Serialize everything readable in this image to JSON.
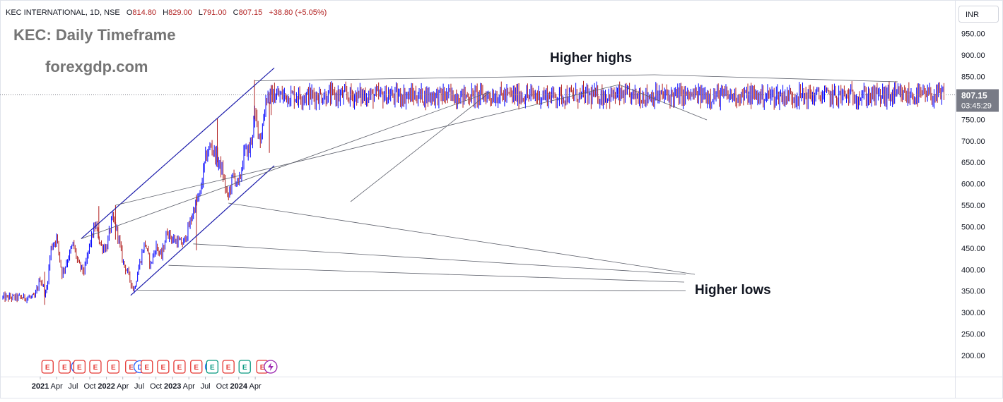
{
  "header": {
    "symbol_info": "KEC INTERNATIONAL, 1D, NSE",
    "open_label": "O",
    "open_value": "814.80",
    "high_label": "H",
    "high_value": "829.00",
    "low_label": "L",
    "low_value": "791.00",
    "close_label": "C",
    "close_value": "807.15",
    "change_value": "+38.80 (+5.05%)"
  },
  "overlay": {
    "title": "KEC: Daily Timeframe",
    "watermark": "forexgdp.com",
    "higher_highs": "Higher highs",
    "higher_lows": "Higher lows"
  },
  "price_scale": {
    "currency": "INR",
    "last_price": "807.15",
    "countdown": "03:45:29"
  },
  "colors": {
    "up": "#0000ff",
    "down": "#b22222",
    "channel": "#1a1aaa",
    "earnings": "#e53935",
    "dividend": "#2962ff",
    "split": "#089981",
    "price_badge": "#787b86"
  },
  "chart_data": {
    "type": "candlestick",
    "y_axis": {
      "ticks": [
        200,
        250,
        300,
        350,
        400,
        450,
        500,
        550,
        600,
        650,
        700,
        750,
        800,
        850,
        900,
        950
      ],
      "tick_labels": [
        "200.00",
        "250.00",
        "300.00",
        "350.00",
        "400.00",
        "450.00",
        "500.00",
        "550.00",
        "600.00",
        "650.00",
        "700.00",
        "750.00",
        "800.00",
        "850.00",
        "900.00",
        "950.00"
      ]
    },
    "x_axis": {
      "labels": [
        {
          "text": "2021",
          "date": "2021-01",
          "bold": true
        },
        {
          "text": "Apr",
          "date": "2021-04"
        },
        {
          "text": "Jul",
          "date": "2021-07"
        },
        {
          "text": "Oct",
          "date": "2021-10"
        },
        {
          "text": "2022",
          "date": "2022-01",
          "bold": true
        },
        {
          "text": "Apr",
          "date": "2022-04"
        },
        {
          "text": "Jul",
          "date": "2022-07"
        },
        {
          "text": "Oct",
          "date": "2022-10"
        },
        {
          "text": "2023",
          "date": "2023-01",
          "bold": true
        },
        {
          "text": "Apr",
          "date": "2023-04"
        },
        {
          "text": "Jul",
          "date": "2023-07"
        },
        {
          "text": "Oct",
          "date": "2023-10"
        },
        {
          "text": "2024",
          "date": "2024-01",
          "bold": true
        },
        {
          "text": "Apr",
          "date": "2024-04"
        }
      ]
    },
    "price_path": [
      [
        "2020-12",
        335
      ],
      [
        "2021-01",
        380
      ],
      [
        "2021-02",
        340
      ],
      [
        "2021-03",
        450
      ],
      [
        "2021-04",
        475
      ],
      [
        "2021-05",
        390
      ],
      [
        "2021-06",
        425
      ],
      [
        "2021-07",
        460
      ],
      [
        "2021-08",
        410
      ],
      [
        "2021-09",
        395
      ],
      [
        "2021-10",
        460
      ],
      [
        "2021-11",
        505
      ],
      [
        "2021-12",
        455
      ],
      [
        "2022-01",
        450
      ],
      [
        "2022-02",
        520
      ],
      [
        "2022-03",
        490
      ],
      [
        "2022-04",
        420
      ],
      [
        "2022-05",
        390
      ],
      [
        "2022-06",
        350
      ],
      [
        "2022-07",
        410
      ],
      [
        "2022-08",
        465
      ],
      [
        "2022-09",
        410
      ],
      [
        "2022-10",
        455
      ],
      [
        "2022-11",
        430
      ],
      [
        "2022-12",
        490
      ],
      [
        "2023-01",
        470
      ],
      [
        "2023-02",
        465
      ],
      [
        "2023-03",
        460
      ],
      [
        "2023-04",
        500
      ],
      [
        "2023-05",
        545
      ],
      [
        "2023-06",
        575
      ],
      [
        "2023-07",
        660
      ],
      [
        "2023-08",
        690
      ],
      [
        "2023-09",
        660
      ],
      [
        "2023-10",
        630
      ],
      [
        "2023-11",
        565
      ],
      [
        "2023-12",
        620
      ],
      [
        "2024-01",
        595
      ],
      [
        "2024-02",
        675
      ],
      [
        "2024-03",
        680
      ],
      [
        "2024-04",
        760
      ],
      [
        "2024-05",
        700
      ],
      [
        "2024-06",
        805
      ]
    ],
    "last_price": 807.15,
    "channel": {
      "upper": [
        [
          "2021-08-15",
          472
        ],
        [
          "2024-07-15",
          870
        ]
      ],
      "lower": [
        [
          "2022-05-15",
          340
        ],
        [
          "2024-07-15",
          642
        ]
      ]
    },
    "pointers": {
      "higher_highs": [
        [
          "2021-08-15",
          472
        ],
        [
          "2022-02-20",
          550
        ],
        [
          "2024-03-28",
          840
        ]
      ],
      "higher_lows": [
        [
          "2022-06-20",
          352
        ],
        [
          "2022-12-10",
          410
        ],
        [
          "2023-04-25",
          460
        ],
        [
          "2023-11-05",
          555
        ]
      ]
    },
    "events": [
      {
        "type": "E",
        "date": "2021-02-10"
      },
      {
        "type": "E",
        "date": "2021-05-15"
      },
      {
        "type": "D",
        "date": "2021-07-25"
      },
      {
        "type": "E",
        "date": "2021-08-05"
      },
      {
        "type": "E",
        "date": "2021-11-01"
      },
      {
        "type": "E",
        "date": "2022-02-08"
      },
      {
        "type": "E",
        "date": "2022-05-18"
      },
      {
        "type": "D",
        "date": "2022-07-05"
      },
      {
        "type": "E",
        "date": "2022-08-12"
      },
      {
        "type": "E",
        "date": "2022-11-10"
      },
      {
        "type": "E",
        "date": "2023-02-08"
      },
      {
        "type": "E",
        "date": "2023-05-12"
      },
      {
        "type": "D",
        "date": "2023-08-03"
      },
      {
        "type": "S",
        "date": "2023-08-08"
      },
      {
        "type": "E",
        "date": "2023-11-05"
      },
      {
        "type": "S",
        "date": "2024-02-03"
      },
      {
        "type": "E",
        "date": "2024-05-10"
      },
      {
        "type": "flash",
        "date": "2024-06-25"
      }
    ]
  }
}
